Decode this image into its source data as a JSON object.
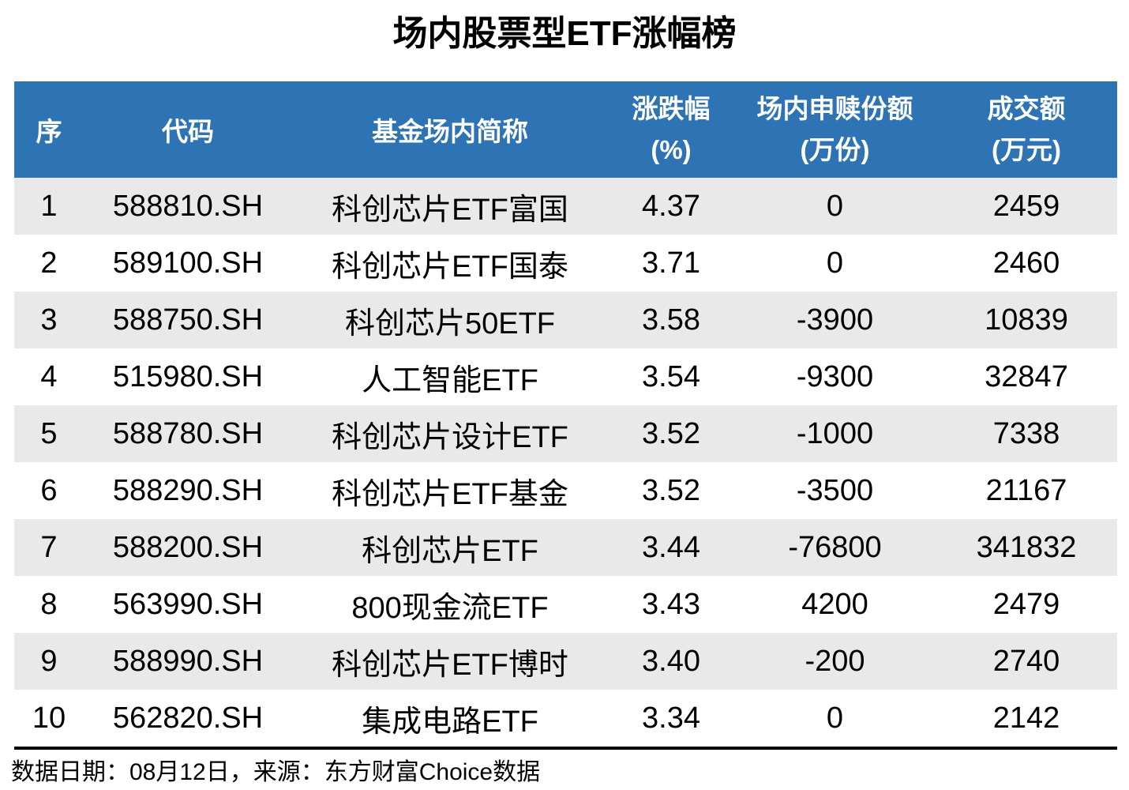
{
  "title": "场内股票型ETF涨幅榜",
  "colors": {
    "header_bg": "#2E74B5",
    "header_text": "#FFFFFF",
    "row_stripe": "#E9E9E9",
    "row_plain": "#FFFFFF",
    "text": "#000000",
    "divider": "#000000"
  },
  "table": {
    "columns": [
      {
        "label": "序",
        "sub": ""
      },
      {
        "label": "代码",
        "sub": ""
      },
      {
        "label": "基金场内简称",
        "sub": ""
      },
      {
        "label": "涨跌幅",
        "sub": "(%)"
      },
      {
        "label": "场内申赎份额",
        "sub": "(万份)"
      },
      {
        "label": "成交额",
        "sub": "(万元)"
      }
    ],
    "rows": [
      {
        "rank": "1",
        "code": "588810.SH",
        "name": "科创芯片ETF富国",
        "change": "4.37",
        "flow": "0",
        "turnover": "2459"
      },
      {
        "rank": "2",
        "code": "589100.SH",
        "name": "科创芯片ETF国泰",
        "change": "3.71",
        "flow": "0",
        "turnover": "2460"
      },
      {
        "rank": "3",
        "code": "588750.SH",
        "name": "科创芯片50ETF",
        "change": "3.58",
        "flow": "-3900",
        "turnover": "10839"
      },
      {
        "rank": "4",
        "code": "515980.SH",
        "name": "人工智能ETF",
        "change": "3.54",
        "flow": "-9300",
        "turnover": "32847"
      },
      {
        "rank": "5",
        "code": "588780.SH",
        "name": "科创芯片设计ETF",
        "change": "3.52",
        "flow": "-1000",
        "turnover": "7338"
      },
      {
        "rank": "6",
        "code": "588290.SH",
        "name": "科创芯片ETF基金",
        "change": "3.52",
        "flow": "-3500",
        "turnover": "21167"
      },
      {
        "rank": "7",
        "code": "588200.SH",
        "name": "科创芯片ETF",
        "change": "3.44",
        "flow": "-76800",
        "turnover": "341832"
      },
      {
        "rank": "8",
        "code": "563990.SH",
        "name": "800现金流ETF",
        "change": "3.43",
        "flow": "4200",
        "turnover": "2479"
      },
      {
        "rank": "9",
        "code": "588990.SH",
        "name": "科创芯片ETF博时",
        "change": "3.40",
        "flow": "-200",
        "turnover": "2740"
      },
      {
        "rank": "10",
        "code": "562820.SH",
        "name": "集成电路ETF",
        "change": "3.34",
        "flow": "0",
        "turnover": "2142"
      }
    ]
  },
  "footer": {
    "note": "数据日期：08月12日，来源：东方财富Choice数据"
  },
  "chart_data": {
    "type": "table",
    "title": "场内股票型ETF涨幅榜",
    "columns": [
      "序",
      "代码",
      "基金场内简称",
      "涨跌幅(%)",
      "场内申赎份额(万份)",
      "成交额(万元)"
    ],
    "rows": [
      [
        1,
        "588810.SH",
        "科创芯片ETF富国",
        4.37,
        0,
        2459
      ],
      [
        2,
        "589100.SH",
        "科创芯片ETF国泰",
        3.71,
        0,
        2460
      ],
      [
        3,
        "588750.SH",
        "科创芯片50ETF",
        3.58,
        -3900,
        10839
      ],
      [
        4,
        "515980.SH",
        "人工智能ETF",
        3.54,
        -9300,
        32847
      ],
      [
        5,
        "588780.SH",
        "科创芯片设计ETF",
        3.52,
        -1000,
        7338
      ],
      [
        6,
        "588290.SH",
        "科创芯片ETF基金",
        3.52,
        -3500,
        21167
      ],
      [
        7,
        "588200.SH",
        "科创芯片ETF",
        3.44,
        -76800,
        341832
      ],
      [
        8,
        "563990.SH",
        "800现金流ETF",
        3.43,
        4200,
        2479
      ],
      [
        9,
        "588990.SH",
        "科创芯片ETF博时",
        3.4,
        -200,
        2740
      ],
      [
        10,
        "562820.SH",
        "集成电路ETF",
        3.34,
        0,
        2142
      ]
    ],
    "footnote": "数据日期：08月12日，来源：东方财富Choice数据"
  }
}
